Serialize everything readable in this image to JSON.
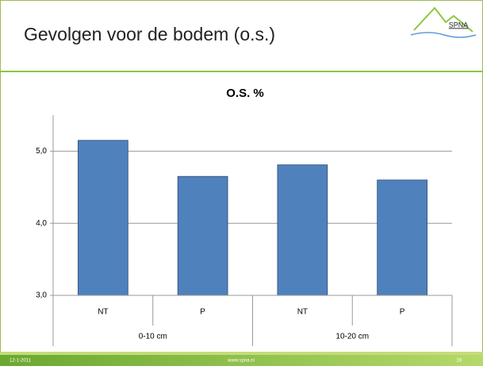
{
  "header": {
    "title": "Gevolgen voor de bodem (o.s.)",
    "logo": "SPNA"
  },
  "chart_data": {
    "type": "bar",
    "title": "O.S. %",
    "categories": [
      "NT",
      "P",
      "NT",
      "P"
    ],
    "groups": [
      "0-10 cm",
      "10-20 cm"
    ],
    "values": [
      5.15,
      4.65,
      4.81,
      4.6
    ],
    "color": "#4f81bd",
    "ylim": [
      3,
      5.5
    ],
    "yticks": [
      {
        "value": 3,
        "label": "3,0"
      },
      {
        "value": 4,
        "label": "4,0"
      },
      {
        "value": 5,
        "label": "5,0"
      }
    ],
    "grid": true
  },
  "footer": {
    "date": "12-1-2011",
    "url": "www.spna.nl",
    "page": "19"
  }
}
